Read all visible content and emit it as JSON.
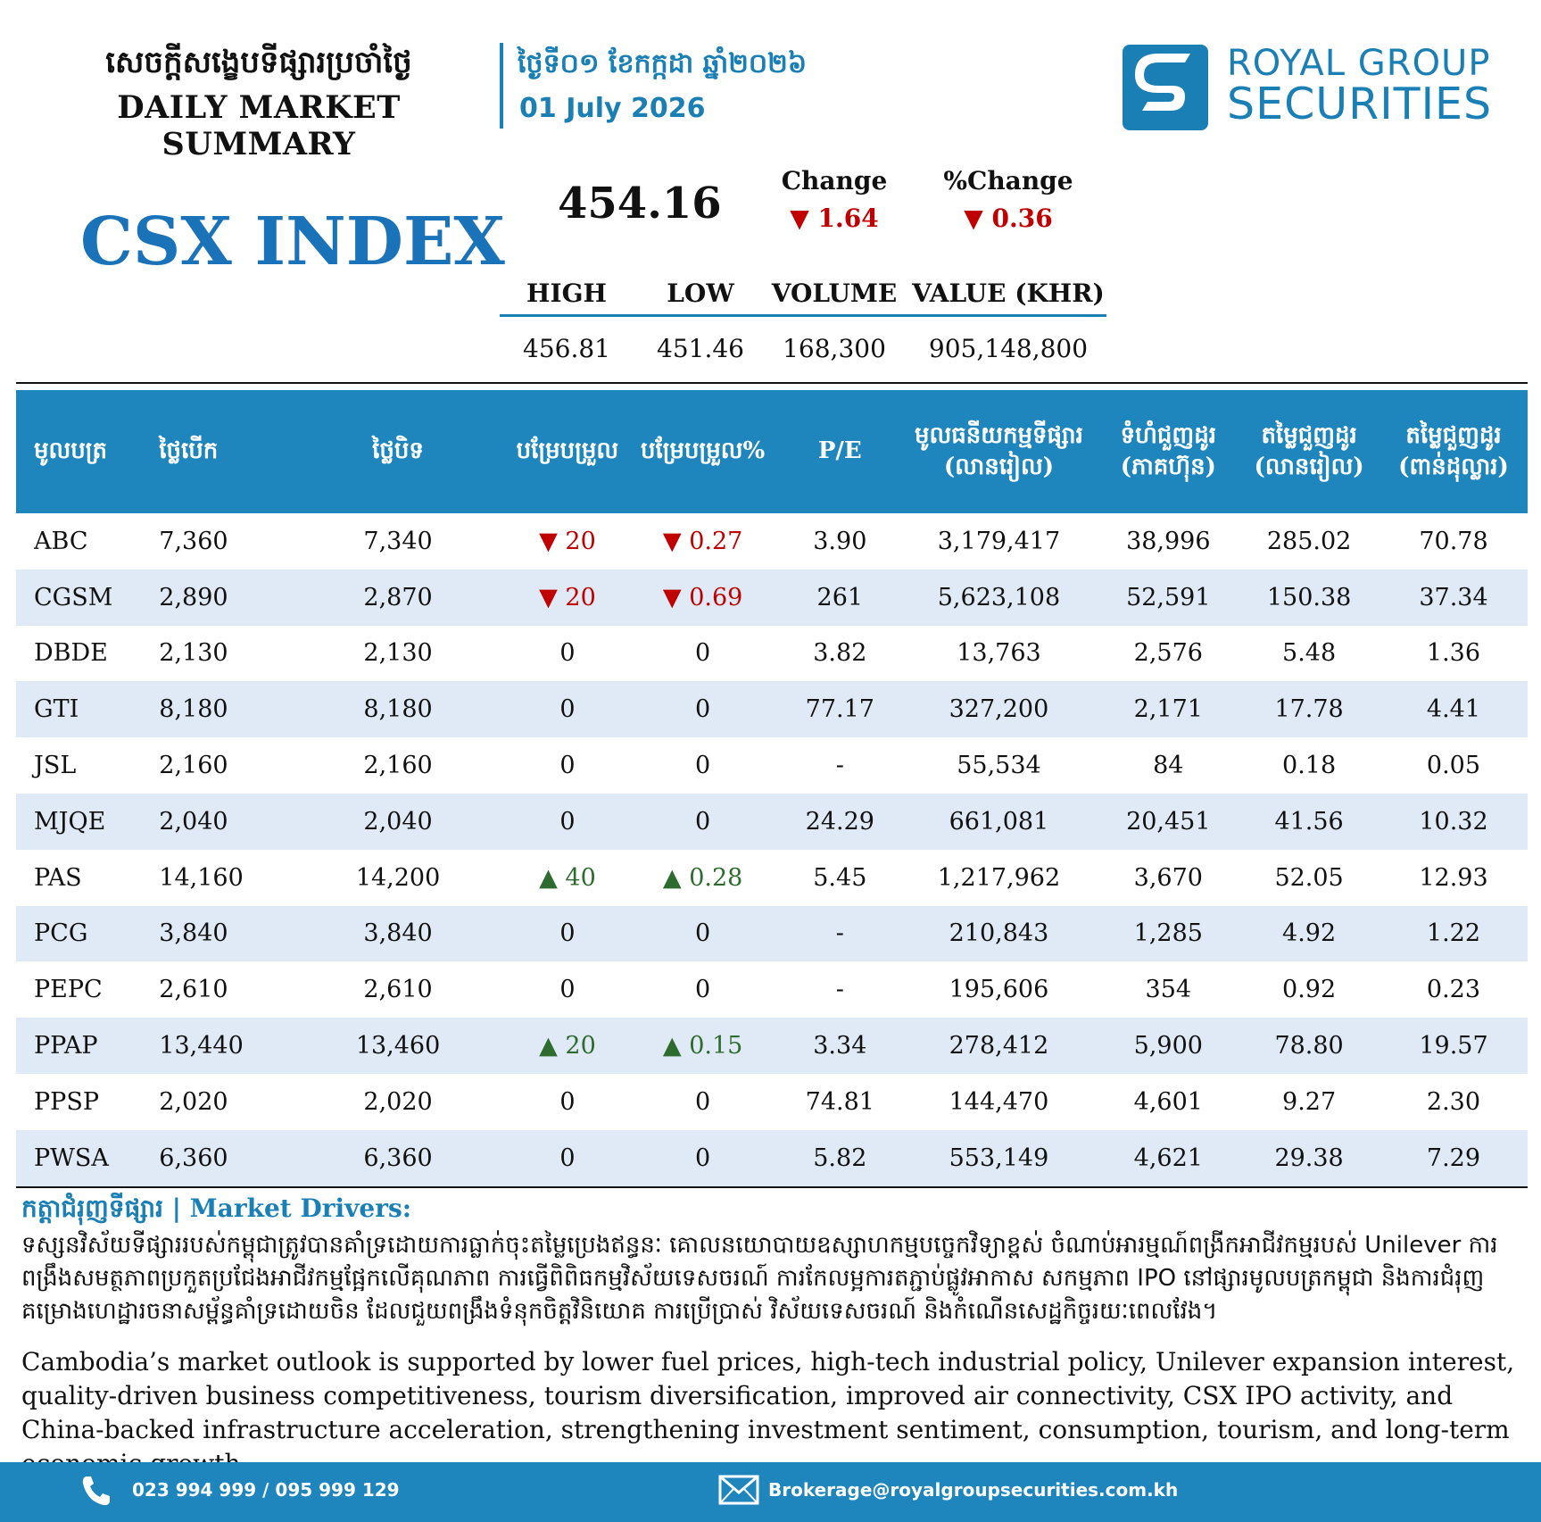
{
  "header": {
    "title_kh": "សេចក្ដីសង្ខេបទីផ្សារប្រចាំថ្ងៃ",
    "title_en": "DAILY MARKET SUMMARY",
    "date_kh": "ថ្ងៃទី០១ ខែកក្កដា ឆ្នាំ២០២៦",
    "date_en": "01 July 2026"
  },
  "logo": {
    "line1": "ROYAL GROUP",
    "line2": "SECURITIES",
    "color": "#1a7fb5"
  },
  "index": {
    "name": "CSX INDEX",
    "value": "454.16",
    "change_label": "Change",
    "change_value": "▼ 1.64",
    "pct_change_label": "%Change",
    "pct_change_value": "▼ 0.36",
    "stats_headers": [
      "HIGH",
      "LOW",
      "VOLUME",
      "VALUE (KHR)"
    ],
    "stats_values": [
      "456.81",
      "451.46",
      "168,300",
      "905,148,800"
    ]
  },
  "table": {
    "headers": [
      "មូលបត្រ",
      "ថ្លៃបើក",
      "ថ្លៃបិទ",
      "បម្រែបម្រួល",
      "បម្រែបម្រួល%",
      "P/E",
      "មូលធនីយកម្មទីផ្សារ (លានរៀល)",
      "ទំហំជួញដូរ (ភាគហ៊ុន)",
      "តម្លៃជួញដូរ (លានរៀល)",
      "តម្លៃជួញដូរ (ពាន់ដុល្លារ)"
    ],
    "rows": [
      [
        "ABC",
        "7,360",
        "7,340",
        "▼ 20",
        "▼ 0.27",
        "3.90",
        "3,179,417",
        "38,996",
        "285.02",
        "70.78"
      ],
      [
        "CGSM",
        "2,890",
        "2,870",
        "▼ 20",
        "▼ 0.69",
        "261",
        "5,623,108",
        "52,591",
        "150.38",
        "37.34"
      ],
      [
        "DBDE",
        "2,130",
        "2,130",
        "0",
        "0",
        "3.82",
        "13,763",
        "2,576",
        "5.48",
        "1.36"
      ],
      [
        "GTI",
        "8,180",
        "8,180",
        "0",
        "0",
        "77.17",
        "327,200",
        "2,171",
        "17.78",
        "4.41"
      ],
      [
        "JSL",
        "2,160",
        "2,160",
        "0",
        "0",
        "-",
        "55,534",
        "84",
        "0.18",
        "0.05"
      ],
      [
        "MJQE",
        "2,040",
        "2,040",
        "0",
        "0",
        "24.29",
        "661,081",
        "20,451",
        "41.56",
        "10.32"
      ],
      [
        "PAS",
        "14,160",
        "14,200",
        "▲ 40",
        "▲ 0.28",
        "5.45",
        "1,217,962",
        "3,670",
        "52.05",
        "12.93"
      ],
      [
        "PCG",
        "3,840",
        "3,840",
        "0",
        "0",
        "-",
        "210,843",
        "1,285",
        "4.92",
        "1.22"
      ],
      [
        "PEPC",
        "2,610",
        "2,610",
        "0",
        "0",
        "-",
        "195,606",
        "354",
        "0.92",
        "0.23"
      ],
      [
        "PPAP",
        "13,440",
        "13,460",
        "▲ 20",
        "▲ 0.15",
        "3.34",
        "278,412",
        "5,900",
        "78.80",
        "19.57"
      ],
      [
        "PPSP",
        "2,020",
        "2,020",
        "0",
        "0",
        "74.81",
        "144,470",
        "4,601",
        "9.27",
        "2.30"
      ],
      [
        "PWSA",
        "6,360",
        "6,360",
        "0",
        "0",
        "5.82",
        "553,149",
        "4,621",
        "29.38",
        "7.29"
      ]
    ]
  },
  "drivers": {
    "title": "កត្តាជំរុញទីផ្សារ | Market Drivers:",
    "text_kh": "ទស្សនវិស័យទីផ្សាររបស់កម្ពុជាត្រូវបានគាំទ្រដោយការធ្លាក់ចុះតម្លៃប្រេងឥន្ធនៈ គោលនយោបាយឧស្សាហកម្មបច្ចេកវិទ្យាខ្ពស់ ចំណាប់អារម្មណ៍ពង្រីកអាជីវកម្មរបស់ Unilever ការពង្រឹងសមត្ថភាពប្រកួតប្រជែងអាជីវកម្មផ្អែកលើគុណភាព ការធ្វើពិពិធកម្មវិស័យទេសចរណ៍ ការកែលម្អការតភ្ជាប់ផ្លូវអាកាស សកម្មភាព IPO នៅផ្សារមូលបត្រកម្ពុជា និងការជំរុញគម្រោងហេដ្ឋារចនាសម្ព័ន្ធគាំទ្រដោយចិន ដែលជួយពង្រឹងទំនុកចិត្តវិនិយោគ ការប្រើប្រាស់ វិស័យទេសចរណ៍ និងកំណើនសេដ្ឋកិច្ចរយៈពេលវែង។",
    "text_en": "Cambodia’s market outlook is supported by lower fuel prices, high-tech industrial policy, Unilever expansion interest, quality-driven business competitiveness, tourism diversification, improved air connectivity, CSX IPO activity, and China-backed infrastructure acceleration, strengthening investment sentiment, consumption, tourism, and long-term economic growth."
  },
  "footer": {
    "phone": "023 994 999 / 095 999 129",
    "email": "Brokerage@royalgroupsecurities.com.kh"
  },
  "colors": {
    "brand": "#1e86bd",
    "down": "#c00000",
    "up": "#2e6b2e",
    "row_alt": "#dfeaf6"
  }
}
